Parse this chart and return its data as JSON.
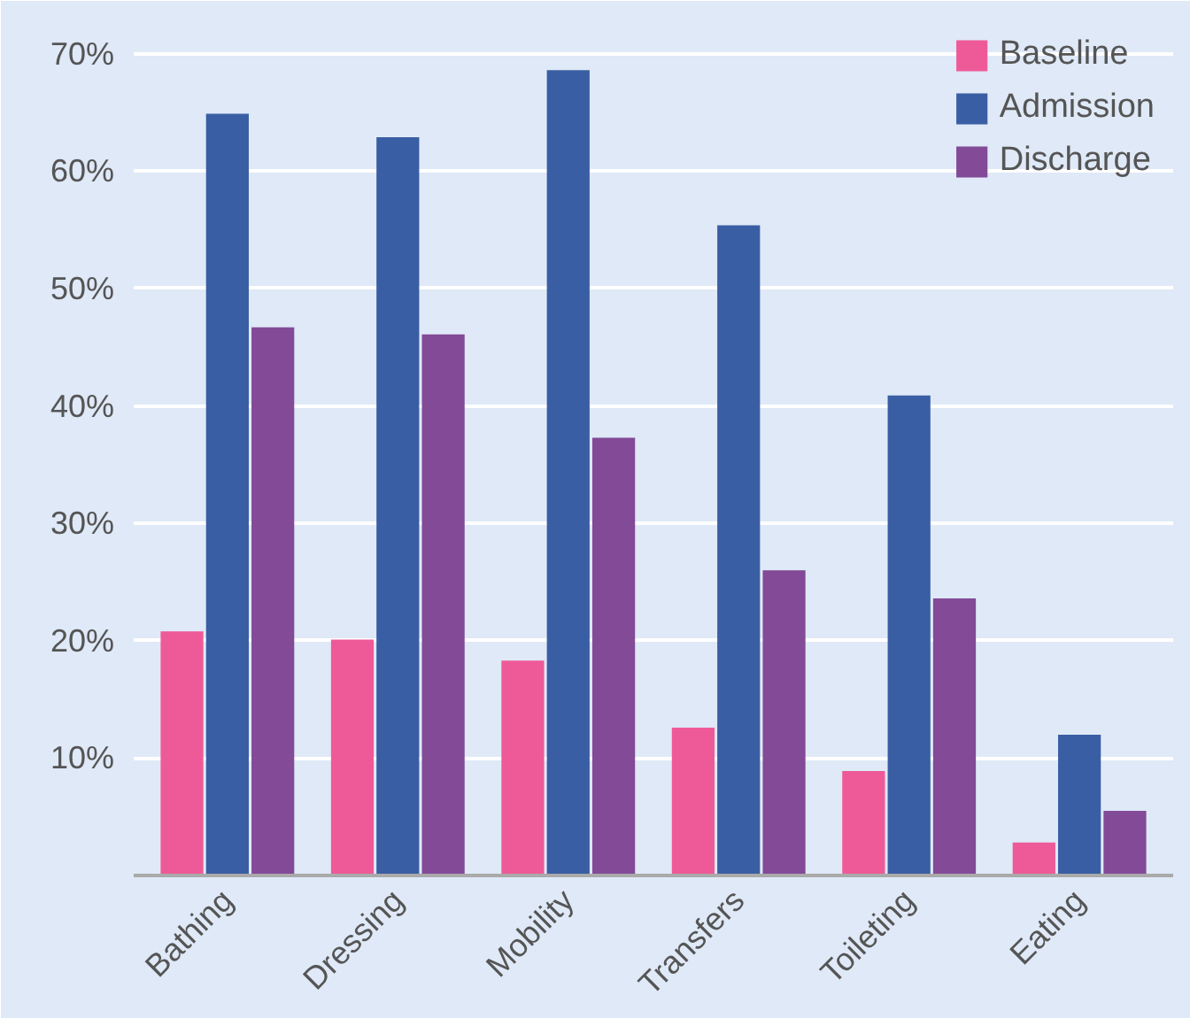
{
  "chart_data": {
    "type": "bar",
    "categories": [
      "Bathing",
      "Dressing",
      "Mobility",
      "Transfers",
      "Toileting",
      "Eating"
    ],
    "series": [
      {
        "name": "Baseline",
        "color": "#ee5a98",
        "values": [
          20.8,
          20.1,
          18.3,
          12.6,
          8.9,
          2.8
        ]
      },
      {
        "name": "Admission",
        "color": "#3a5ea3",
        "values": [
          64.9,
          62.9,
          68.6,
          55.4,
          40.9,
          12.0
        ]
      },
      {
        "name": "Discharge",
        "color": "#824a97",
        "values": [
          46.7,
          46.1,
          37.3,
          26.0,
          23.6,
          5.5
        ]
      }
    ],
    "ylim": [
      0,
      73
    ],
    "yticks": [
      {
        "value": 10,
        "label": "10%"
      },
      {
        "value": 20,
        "label": "20%"
      },
      {
        "value": 30,
        "label": "30%"
      },
      {
        "value": 40,
        "label": "40%"
      },
      {
        "value": 50,
        "label": "50%"
      },
      {
        "value": 60,
        "label": "60%"
      },
      {
        "value": 70,
        "label": "70%"
      }
    ],
    "grid": "y",
    "legend": "top right"
  }
}
